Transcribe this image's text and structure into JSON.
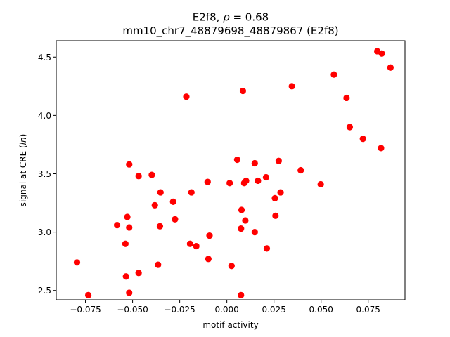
{
  "chart_data": {
    "type": "scatter",
    "title_line1_prefix": "E2f8, ",
    "title_line1_rho": "ρ",
    "title_line1_suffix": " = 0.68",
    "title_line2": "mm10_chr7_48879698_48879867 (E2f8)",
    "xlabel": "motif activity",
    "ylabel_prefix": "signal at CRE (",
    "ylabel_ln": "ln",
    "ylabel_suffix": ")",
    "xlim": [
      -0.0905,
      0.0945
    ],
    "ylim": [
      2.42,
      4.64
    ],
    "xticks": [
      {
        "value": -0.075,
        "label": "−0.075"
      },
      {
        "value": -0.05,
        "label": "−0.050"
      },
      {
        "value": -0.025,
        "label": "−0.025"
      },
      {
        "value": 0.0,
        "label": "0.000"
      },
      {
        "value": 0.025,
        "label": "0.025"
      },
      {
        "value": 0.05,
        "label": "0.050"
      },
      {
        "value": 0.075,
        "label": "0.075"
      }
    ],
    "yticks": [
      {
        "value": 2.5,
        "label": "2.5"
      },
      {
        "value": 3.0,
        "label": "3.0"
      },
      {
        "value": 3.5,
        "label": "3.5"
      },
      {
        "value": 4.0,
        "label": "4.0"
      },
      {
        "value": 4.5,
        "label": "4.5"
      }
    ],
    "grid": false,
    "marker_color": "#ff0000",
    "points": [
      {
        "x": -0.0795,
        "y": 2.74
      },
      {
        "x": -0.0735,
        "y": 2.46
      },
      {
        "x": -0.0582,
        "y": 3.06
      },
      {
        "x": -0.0538,
        "y": 2.9
      },
      {
        "x": -0.0535,
        "y": 2.62
      },
      {
        "x": -0.0528,
        "y": 3.13
      },
      {
        "x": -0.0518,
        "y": 3.04
      },
      {
        "x": -0.0518,
        "y": 3.58
      },
      {
        "x": -0.0518,
        "y": 2.48
      },
      {
        "x": -0.0468,
        "y": 3.48
      },
      {
        "x": -0.0468,
        "y": 2.65
      },
      {
        "x": -0.0398,
        "y": 3.49
      },
      {
        "x": -0.0382,
        "y": 3.23
      },
      {
        "x": -0.0365,
        "y": 2.72
      },
      {
        "x": -0.0355,
        "y": 3.05
      },
      {
        "x": -0.0352,
        "y": 3.34
      },
      {
        "x": -0.0285,
        "y": 3.26
      },
      {
        "x": -0.0275,
        "y": 3.11
      },
      {
        "x": -0.0215,
        "y": 4.16
      },
      {
        "x": -0.0195,
        "y": 2.9
      },
      {
        "x": -0.0188,
        "y": 3.34
      },
      {
        "x": -0.0162,
        "y": 2.88
      },
      {
        "x": -0.0102,
        "y": 3.43
      },
      {
        "x": -0.0098,
        "y": 2.77
      },
      {
        "x": -0.0092,
        "y": 2.97
      },
      {
        "x": 0.0015,
        "y": 3.42
      },
      {
        "x": 0.0025,
        "y": 2.71
      },
      {
        "x": 0.0055,
        "y": 3.62
      },
      {
        "x": 0.0075,
        "y": 3.03
      },
      {
        "x": 0.0075,
        "y": 2.46
      },
      {
        "x": 0.0078,
        "y": 3.19
      },
      {
        "x": 0.0085,
        "y": 4.21
      },
      {
        "x": 0.0092,
        "y": 3.42
      },
      {
        "x": 0.0098,
        "y": 3.1
      },
      {
        "x": 0.0102,
        "y": 3.44
      },
      {
        "x": 0.0148,
        "y": 3.59
      },
      {
        "x": 0.0148,
        "y": 3.0
      },
      {
        "x": 0.0165,
        "y": 3.44
      },
      {
        "x": 0.0208,
        "y": 3.47
      },
      {
        "x": 0.0212,
        "y": 2.86
      },
      {
        "x": 0.0255,
        "y": 3.29
      },
      {
        "x": 0.0258,
        "y": 3.14
      },
      {
        "x": 0.0275,
        "y": 3.61
      },
      {
        "x": 0.0285,
        "y": 3.34
      },
      {
        "x": 0.0345,
        "y": 4.25
      },
      {
        "x": 0.0392,
        "y": 3.53
      },
      {
        "x": 0.0498,
        "y": 3.41
      },
      {
        "x": 0.0568,
        "y": 4.35
      },
      {
        "x": 0.0635,
        "y": 4.15
      },
      {
        "x": 0.0652,
        "y": 3.9
      },
      {
        "x": 0.0722,
        "y": 3.8
      },
      {
        "x": 0.0798,
        "y": 4.55
      },
      {
        "x": 0.0818,
        "y": 3.72
      },
      {
        "x": 0.0822,
        "y": 4.53
      },
      {
        "x": 0.0868,
        "y": 4.41
      }
    ]
  }
}
